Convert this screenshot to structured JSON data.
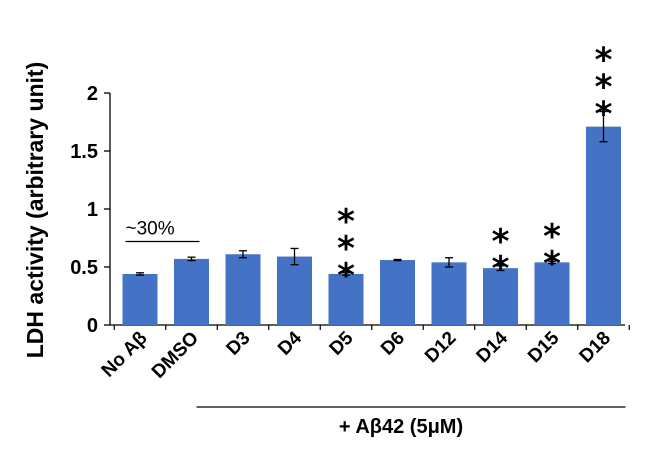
{
  "chart_data": {
    "type": "bar",
    "title": "",
    "xlabel": "",
    "ylabel": "LDH activity (arbitrary unit)",
    "ylim": [
      0,
      2
    ],
    "yticks": [
      "0",
      "0.5",
      "1",
      "1.5",
      "2"
    ],
    "ytick_values": [
      0,
      0.5,
      1,
      1.5,
      2
    ],
    "categories": [
      "No Aβ",
      "DMSO",
      "D3",
      "D4",
      "D5",
      "D6",
      "D12",
      "D14",
      "D15",
      "D18"
    ],
    "values": [
      0.44,
      0.57,
      0.61,
      0.59,
      0.44,
      0.56,
      0.54,
      0.49,
      0.54,
      1.71
    ],
    "errors": [
      0.01,
      0.015,
      0.03,
      0.07,
      0.01,
      0.005,
      0.04,
      0.02,
      0.01,
      0.13
    ],
    "significance": [
      "",
      "",
      "",
      "",
      "***",
      "",
      "",
      "**",
      "**",
      "***"
    ],
    "bar_color": "#4472C4",
    "grid": false,
    "legend": "none",
    "annotation": {
      "text": "~30%",
      "spans": [
        "No Aβ",
        "DMSO"
      ]
    },
    "group_label": {
      "text": "+ Aβ42 (5μM)",
      "from": "DMSO",
      "to": "D18"
    }
  }
}
